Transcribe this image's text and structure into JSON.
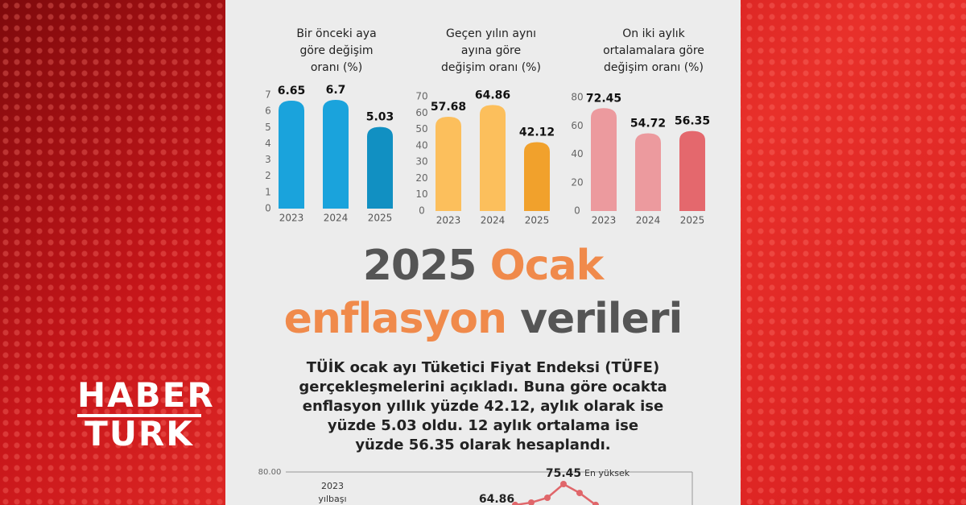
{
  "chart_data": [
    {
      "type": "bar",
      "title": [
        "Bir önceki aya",
        "göre değişim",
        "oranı (%)"
      ],
      "categories": [
        "2023",
        "2024",
        "2025"
      ],
      "values": [
        6.65,
        6.7,
        5.03
      ],
      "colors": [
        "#1aa3dc",
        "#1aa3dc",
        "#1190c2"
      ],
      "ylim": [
        0,
        7
      ],
      "yticks": [
        0,
        1,
        2,
        3,
        4,
        5,
        6,
        7
      ]
    },
    {
      "type": "bar",
      "title": [
        "Geçen yılın aynı",
        "ayına göre",
        "değişim oranı (%)"
      ],
      "categories": [
        "2023",
        "2024",
        "2025"
      ],
      "values": [
        57.68,
        64.86,
        42.12
      ],
      "colors": [
        "#fcbf5c",
        "#fcbf5c",
        "#f1a12c"
      ],
      "ylim": [
        0,
        70
      ],
      "yticks": [
        0,
        10,
        20,
        30,
        40,
        50,
        60,
        70
      ]
    },
    {
      "type": "bar",
      "title": [
        "On iki aylık",
        "ortalamalara göre",
        "değişim oranı (%)"
      ],
      "categories": [
        "2023",
        "2024",
        "2025"
      ],
      "values": [
        72.45,
        54.72,
        56.35
      ],
      "colors": [
        "#ec9a9e",
        "#ec9a9e",
        "#e4686d"
      ],
      "ylim": [
        0,
        80
      ],
      "yticks": [
        0,
        20,
        40,
        60,
        80
      ]
    },
    {
      "type": "line",
      "categories": [
        null,
        null,
        null,
        null,
        null,
        null,
        null
      ],
      "values": [
        64.86,
        67.6,
        68.5,
        70.3,
        75.45,
        72.1,
        67.6
      ],
      "color": "#e0666a",
      "ylim": [
        60,
        80
      ],
      "yticks": [
        {
          "value": 80,
          "label": "80.00"
        }
      ],
      "annotations": [
        "2023",
        "yılbaşı",
        "En yüksek"
      ]
    }
  ],
  "logo": [
    "HABER",
    "TURK"
  ],
  "headline": {
    "line1": [
      "2025",
      "Ocak"
    ],
    "line2": [
      "enflasyon",
      "verileri"
    ]
  },
  "body": [
    "TÜİK ocak ayı Tüketici Fiyat Endeksi (TÜFE)",
    "gerçekleşmelerini açıkladı. Buna göre ocakta",
    "enflasyon yıllık yüzde 42.12, aylık olarak ise",
    "yüzde 5.03 oldu. 12 aylık ortalama ise",
    "yüzde 56.35 olarak hesaplandı."
  ]
}
